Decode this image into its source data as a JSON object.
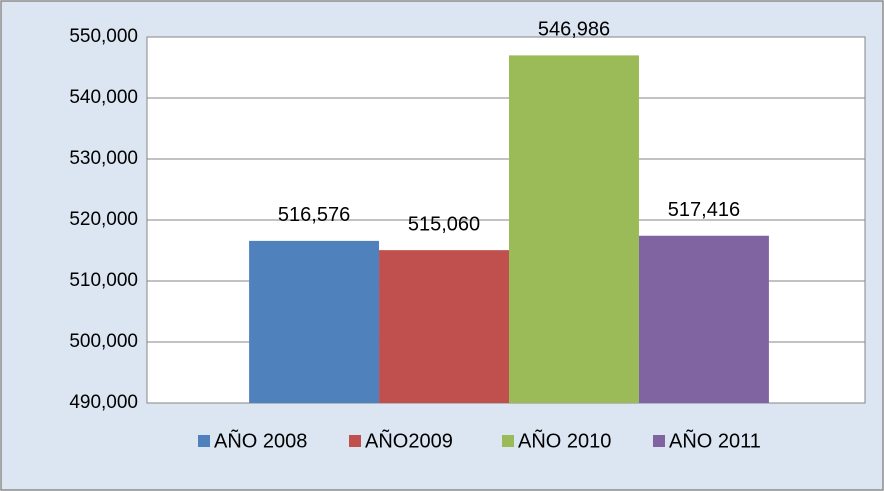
{
  "chart_data": {
    "type": "bar",
    "categories": [
      null
    ],
    "series": [
      {
        "name": "AÑO 2008",
        "color": "#4f81bd",
        "values": [
          516576
        ],
        "value_labels": [
          "516,576"
        ]
      },
      {
        "name": "AÑO2009",
        "color": "#c0504d",
        "values": [
          515060
        ],
        "value_labels": [
          "515,060"
        ]
      },
      {
        "name": "AÑO 2010",
        "color": "#9bbb59",
        "values": [
          546986
        ],
        "value_labels": [
          "546,986"
        ]
      },
      {
        "name": "AÑO 2011",
        "color": "#8064a2",
        "values": [
          517416
        ],
        "value_labels": [
          "517,416"
        ]
      }
    ],
    "ylim": [
      490000,
      550000
    ],
    "yticks": [
      {
        "value": 490000,
        "label": "490,000"
      },
      {
        "value": 500000,
        "label": "500,000"
      },
      {
        "value": 510000,
        "label": "510,000"
      },
      {
        "value": 520000,
        "label": "520,000"
      },
      {
        "value": 530000,
        "label": "530,000"
      },
      {
        "value": 540000,
        "label": "540,000"
      },
      {
        "value": 550000,
        "label": "550,000"
      }
    ],
    "grid": true,
    "legend": "bottom"
  }
}
